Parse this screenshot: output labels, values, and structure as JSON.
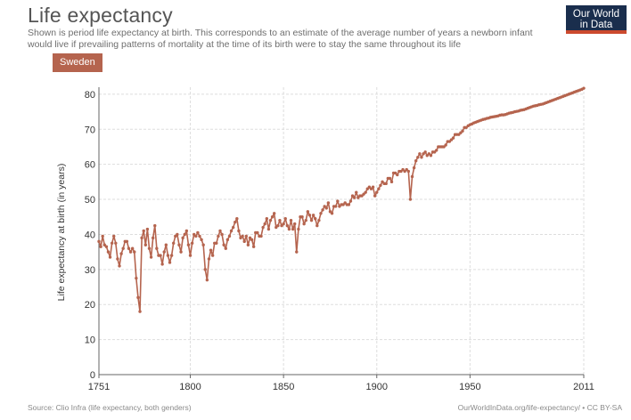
{
  "header": {
    "title": "Life expectancy",
    "subtitle": "Shown is period life expectancy at birth. This corresponds to an estimate of the average number of years a newborn infant would live if prevailing patterns of mortality at the time of its birth were to stay the same throughout its life"
  },
  "logo": {
    "line1": "Our World",
    "line2": "in Data",
    "bg": "#1a2e4d",
    "accent": "#cc4a2e"
  },
  "entity": {
    "label": "Sweden",
    "color": "#b5644e"
  },
  "footer": {
    "source": "Source: Clio Infra (life expectancy, both genders)",
    "url": "OurWorldInData.org/life-expectancy/ • CC BY-SA"
  },
  "chart_data": {
    "type": "line",
    "title": "Life expectancy",
    "xlabel": "",
    "ylabel": "Life expectancy at birth (in years)",
    "xlim": [
      1751,
      2011
    ],
    "ylim": [
      0,
      82
    ],
    "x_ticks": [
      "1751",
      "1800",
      "1850",
      "1900",
      "1950",
      "2011"
    ],
    "x_tick_values": [
      1751,
      1800,
      1850,
      1900,
      1950,
      2011
    ],
    "y_ticks": [
      "0",
      "10",
      "20",
      "30",
      "40",
      "50",
      "60",
      "70",
      "80"
    ],
    "y_tick_values": [
      0,
      10,
      20,
      30,
      40,
      50,
      60,
      70,
      80
    ],
    "grid": true,
    "series": [
      {
        "name": "Sweden",
        "color": "#b5644e",
        "points": [
          [
            1751,
            38
          ],
          [
            1752,
            36.5
          ],
          [
            1753,
            39.5
          ],
          [
            1754,
            37
          ],
          [
            1755,
            36.5
          ],
          [
            1756,
            35
          ],
          [
            1757,
            33.5
          ],
          [
            1758,
            37.5
          ],
          [
            1759,
            39.5
          ],
          [
            1760,
            37.5
          ],
          [
            1761,
            33
          ],
          [
            1762,
            31
          ],
          [
            1763,
            34.5
          ],
          [
            1764,
            36
          ],
          [
            1765,
            38
          ],
          [
            1766,
            38
          ],
          [
            1767,
            36
          ],
          [
            1768,
            35
          ],
          [
            1769,
            36
          ],
          [
            1770,
            35
          ],
          [
            1771,
            27.5
          ],
          [
            1772,
            22
          ],
          [
            1773,
            18
          ],
          [
            1774,
            39
          ],
          [
            1775,
            41
          ],
          [
            1776,
            37
          ],
          [
            1777,
            41.5
          ],
          [
            1778,
            36
          ],
          [
            1779,
            33.5
          ],
          [
            1780,
            39
          ],
          [
            1781,
            42.5
          ],
          [
            1782,
            36
          ],
          [
            1783,
            34
          ],
          [
            1784,
            34
          ],
          [
            1785,
            31.5
          ],
          [
            1786,
            35
          ],
          [
            1787,
            37
          ],
          [
            1788,
            34
          ],
          [
            1789,
            32
          ],
          [
            1790,
            34
          ],
          [
            1791,
            37.5
          ],
          [
            1792,
            39.5
          ],
          [
            1793,
            40
          ],
          [
            1794,
            37
          ],
          [
            1795,
            35
          ],
          [
            1796,
            39
          ],
          [
            1797,
            40
          ],
          [
            1798,
            41
          ],
          [
            1799,
            37
          ],
          [
            1800,
            34
          ],
          [
            1801,
            37.5
          ],
          [
            1802,
            40
          ],
          [
            1803,
            39.5
          ],
          [
            1804,
            40.5
          ],
          [
            1805,
            39.5
          ],
          [
            1806,
            38.5
          ],
          [
            1807,
            37
          ],
          [
            1808,
            30
          ],
          [
            1809,
            27
          ],
          [
            1810,
            33
          ],
          [
            1811,
            35.5
          ],
          [
            1812,
            34
          ],
          [
            1813,
            37.5
          ],
          [
            1814,
            37.5
          ],
          [
            1815,
            39.5
          ],
          [
            1816,
            41
          ],
          [
            1817,
            40
          ],
          [
            1818,
            37
          ],
          [
            1819,
            36
          ],
          [
            1820,
            38.5
          ],
          [
            1821,
            39.5
          ],
          [
            1822,
            41
          ],
          [
            1823,
            42
          ],
          [
            1824,
            43.5
          ],
          [
            1825,
            44.5
          ],
          [
            1826,
            41
          ],
          [
            1827,
            39
          ],
          [
            1828,
            39.5
          ],
          [
            1829,
            38
          ],
          [
            1830,
            39.5
          ],
          [
            1831,
            37
          ],
          [
            1832,
            39
          ],
          [
            1833,
            38.5
          ],
          [
            1834,
            36.5
          ],
          [
            1835,
            40.5
          ],
          [
            1836,
            40.5
          ],
          [
            1837,
            39.5
          ],
          [
            1838,
            39.5
          ],
          [
            1839,
            42
          ],
          [
            1840,
            43
          ],
          [
            1841,
            44.5
          ],
          [
            1842,
            41.5
          ],
          [
            1843,
            44
          ],
          [
            1844,
            45
          ],
          [
            1845,
            46
          ],
          [
            1846,
            42
          ],
          [
            1847,
            42.5
          ],
          [
            1848,
            44
          ],
          [
            1849,
            42.5
          ],
          [
            1850,
            43
          ],
          [
            1851,
            44.5
          ],
          [
            1852,
            42.5
          ],
          [
            1853,
            41.5
          ],
          [
            1854,
            44
          ],
          [
            1855,
            41.5
          ],
          [
            1856,
            43
          ],
          [
            1857,
            35
          ],
          [
            1858,
            41.5
          ],
          [
            1859,
            45
          ],
          [
            1860,
            45
          ],
          [
            1861,
            43
          ],
          [
            1862,
            44
          ],
          [
            1863,
            46.5
          ],
          [
            1864,
            45.5
          ],
          [
            1865,
            44
          ],
          [
            1866,
            45.5
          ],
          [
            1867,
            44.5
          ],
          [
            1868,
            42.5
          ],
          [
            1869,
            44
          ],
          [
            1870,
            46
          ],
          [
            1871,
            47
          ],
          [
            1872,
            48
          ],
          [
            1873,
            47.5
          ],
          [
            1874,
            49
          ],
          [
            1875,
            46.5
          ],
          [
            1876,
            46
          ],
          [
            1877,
            48
          ],
          [
            1878,
            48
          ],
          [
            1879,
            49.5
          ],
          [
            1880,
            48
          ],
          [
            1881,
            48.5
          ],
          [
            1882,
            48.5
          ],
          [
            1883,
            49
          ],
          [
            1884,
            48.5
          ],
          [
            1885,
            48.5
          ],
          [
            1886,
            49.5
          ],
          [
            1887,
            51
          ],
          [
            1888,
            50.5
          ],
          [
            1889,
            52
          ],
          [
            1890,
            50.5
          ],
          [
            1891,
            51
          ],
          [
            1892,
            51
          ],
          [
            1893,
            51.5
          ],
          [
            1894,
            52
          ],
          [
            1895,
            53
          ],
          [
            1896,
            53.5
          ],
          [
            1897,
            53
          ],
          [
            1898,
            53.5
          ],
          [
            1899,
            51
          ],
          [
            1900,
            52
          ],
          [
            1901,
            53
          ],
          [
            1902,
            54
          ],
          [
            1903,
            55
          ],
          [
            1904,
            54.5
          ],
          [
            1905,
            54.5
          ],
          [
            1906,
            56
          ],
          [
            1907,
            56
          ],
          [
            1908,
            55
          ],
          [
            1909,
            57.5
          ],
          [
            1910,
            57.5
          ],
          [
            1911,
            57
          ],
          [
            1912,
            58
          ],
          [
            1913,
            58
          ],
          [
            1914,
            58.5
          ],
          [
            1915,
            58
          ],
          [
            1916,
            58.5
          ],
          [
            1917,
            58
          ],
          [
            1918,
            50
          ],
          [
            1919,
            56.5
          ],
          [
            1920,
            59
          ],
          [
            1921,
            61
          ],
          [
            1922,
            62
          ],
          [
            1923,
            63
          ],
          [
            1924,
            62
          ],
          [
            1925,
            63
          ],
          [
            1926,
            63.5
          ],
          [
            1927,
            62.5
          ],
          [
            1928,
            63
          ],
          [
            1929,
            62.5
          ],
          [
            1930,
            63.5
          ],
          [
            1931,
            63.5
          ],
          [
            1932,
            64
          ],
          [
            1933,
            65
          ],
          [
            1934,
            65
          ],
          [
            1935,
            65
          ],
          [
            1936,
            65
          ],
          [
            1937,
            65.5
          ],
          [
            1938,
            66.5
          ],
          [
            1939,
            66.5
          ],
          [
            1940,
            67
          ],
          [
            1941,
            67.5
          ],
          [
            1942,
            68.5
          ],
          [
            1943,
            68.5
          ],
          [
            1944,
            68.5
          ],
          [
            1945,
            69
          ],
          [
            1946,
            69.5
          ],
          [
            1947,
            70.5
          ],
          [
            1948,
            70.5
          ],
          [
            1949,
            71
          ],
          [
            1950,
            71.3
          ],
          [
            1951,
            71.5
          ],
          [
            1952,
            71.8
          ],
          [
            1953,
            72
          ],
          [
            1954,
            72.2
          ],
          [
            1955,
            72.4
          ],
          [
            1956,
            72.6
          ],
          [
            1957,
            72.8
          ],
          [
            1958,
            72.9
          ],
          [
            1959,
            73.1
          ],
          [
            1960,
            73.2
          ],
          [
            1961,
            73.4
          ],
          [
            1962,
            73.5
          ],
          [
            1963,
            73.6
          ],
          [
            1964,
            73.7
          ],
          [
            1965,
            73.8
          ],
          [
            1966,
            74
          ],
          [
            1967,
            74.1
          ],
          [
            1968,
            74.1
          ],
          [
            1969,
            74.2
          ],
          [
            1970,
            74.4
          ],
          [
            1971,
            74.6
          ],
          [
            1972,
            74.7
          ],
          [
            1973,
            74.8
          ],
          [
            1974,
            75
          ],
          [
            1975,
            75.1
          ],
          [
            1976,
            75.2
          ],
          [
            1977,
            75.4
          ],
          [
            1978,
            75.5
          ],
          [
            1979,
            75.6
          ],
          [
            1980,
            75.8
          ],
          [
            1981,
            76
          ],
          [
            1982,
            76.2
          ],
          [
            1983,
            76.4
          ],
          [
            1984,
            76.6
          ],
          [
            1985,
            76.7
          ],
          [
            1986,
            76.8
          ],
          [
            1987,
            77
          ],
          [
            1988,
            77.1
          ],
          [
            1989,
            77.2
          ],
          [
            1990,
            77.4
          ],
          [
            1991,
            77.6
          ],
          [
            1992,
            77.8
          ],
          [
            1993,
            78
          ],
          [
            1994,
            78.2
          ],
          [
            1995,
            78.4
          ],
          [
            1996,
            78.6
          ],
          [
            1997,
            78.8
          ],
          [
            1998,
            79
          ],
          [
            1999,
            79.2
          ],
          [
            2000,
            79.4
          ],
          [
            2001,
            79.6
          ],
          [
            2002,
            79.8
          ],
          [
            2003,
            80
          ],
          [
            2004,
            80.2
          ],
          [
            2005,
            80.4
          ],
          [
            2006,
            80.6
          ],
          [
            2007,
            80.8
          ],
          [
            2008,
            81
          ],
          [
            2009,
            81.2
          ],
          [
            2010,
            81.4
          ],
          [
            2011,
            81.7
          ]
        ]
      }
    ]
  }
}
